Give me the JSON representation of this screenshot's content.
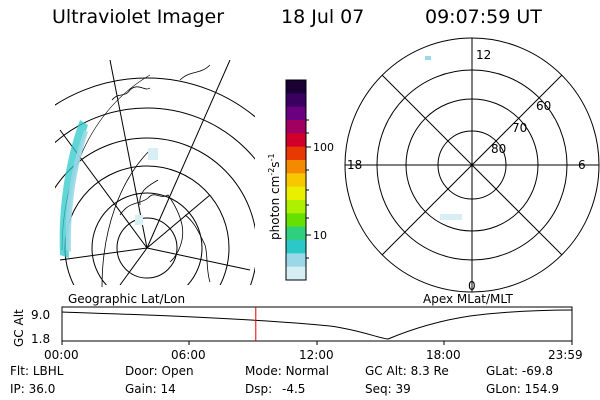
{
  "header": {
    "title": "Ultraviolet Imager",
    "date": "18 Jul 07",
    "time": "09:07:59 UT"
  },
  "colorbar": {
    "label": "photon cm",
    "label_exp1": "-2",
    "label_mid": "s",
    "label_exp2": "-1",
    "ticks": [
      "100",
      "10"
    ],
    "colors": [
      "#1a0033",
      "#3a0060",
      "#6a0080",
      "#a00060",
      "#d0002a",
      "#e63a00",
      "#f58a00",
      "#f7c800",
      "#e8f000",
      "#aef000",
      "#66e000",
      "#2ed080",
      "#2cc8c8",
      "#9ad8e8",
      "#d6eef4"
    ]
  },
  "left_map": {
    "caption": "Geographic Lat/Lon"
  },
  "right_map": {
    "caption": "Apex MLat/MLT",
    "lat_labels": [
      "60",
      "70",
      "80"
    ],
    "mlt_labels": [
      "12",
      "18",
      "6",
      "0"
    ]
  },
  "orbit_plot": {
    "ylabel": "GC Alt",
    "y_ticks": [
      "9.0",
      "1.8"
    ],
    "x_ticks": [
      "00:00",
      "06:00",
      "12:00",
      "18:00",
      "23:59"
    ],
    "current_time_fraction": 0.38
  },
  "info": {
    "row1": [
      {
        "label": "Flt:",
        "value": "LBHL"
      },
      {
        "label": "Door:",
        "value": "Open"
      },
      {
        "label": "Mode:",
        "value": "Normal"
      },
      {
        "label": "GC Alt:",
        "value": "8.3 Re"
      },
      {
        "label": "GLat:",
        "value": "-69.8"
      }
    ],
    "row2": [
      {
        "label": "IP:",
        "value": "36.0"
      },
      {
        "label": "Gain:",
        "value": "14"
      },
      {
        "label": "Dsp:",
        "value": "-4.5"
      },
      {
        "label": "Seq:",
        "value": "39"
      },
      {
        "label": "GLon:",
        "value": "154.9"
      }
    ]
  }
}
